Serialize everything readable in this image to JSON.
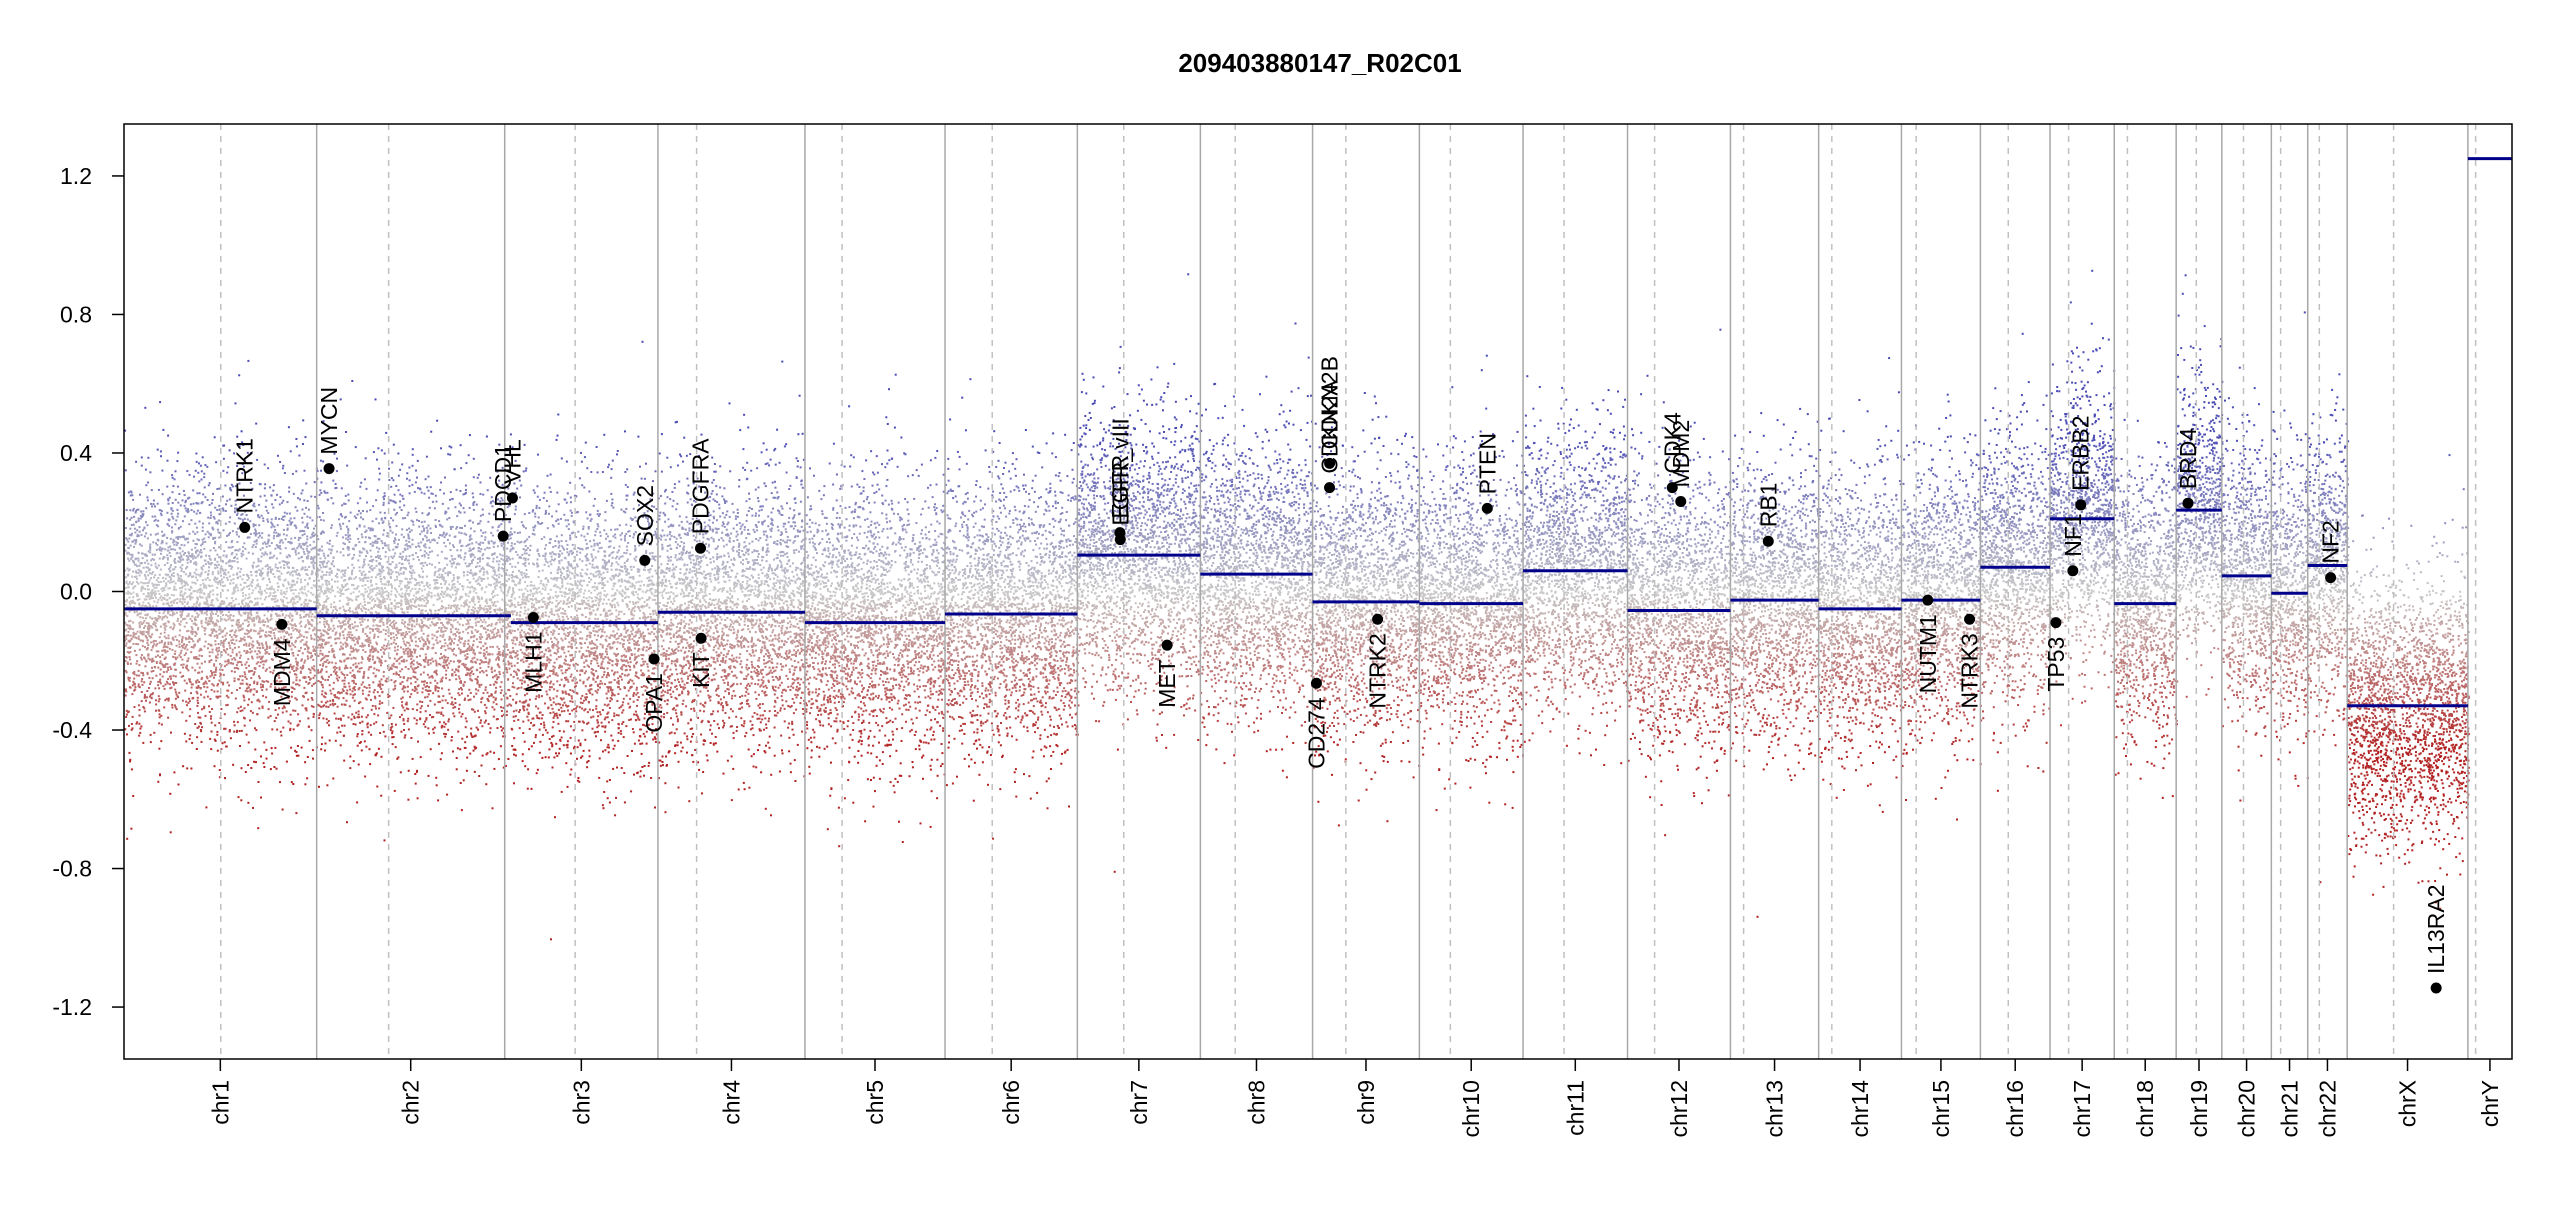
{
  "chart_data": {
    "type": "scatter",
    "title": "209403880147_R02C01",
    "xlabel": "",
    "ylabel": "",
    "ylim": [
      -1.35,
      1.35
    ],
    "y_ticks": [
      -1.2,
      -0.8,
      -0.4,
      0.0,
      0.4,
      0.8,
      1.2
    ],
    "y_tick_labels": [
      "-1.2",
      "-0.8",
      "-0.4",
      "0.0",
      "0.4",
      "0.8",
      "1.2"
    ],
    "grid": false,
    "legend": "none",
    "colors": {
      "gain_points": "#4b4bb5",
      "loss_points": "#b22222",
      "segment_line": "#00008b",
      "chromosome_border": "#a8a8a8",
      "centromere_line": "#c0c0c0",
      "gene_marker": "#000000"
    },
    "chromosomes": [
      {
        "name": "chr1",
        "length": 249,
        "centromere": 125,
        "segments": [
          {
            "start": 0,
            "end": 249,
            "value": -0.05
          }
        ]
      },
      {
        "name": "chr2",
        "length": 243,
        "centromere": 93,
        "segments": [
          {
            "start": 0,
            "end": 243,
            "value": -0.07
          }
        ]
      },
      {
        "name": "chr3",
        "length": 198,
        "centromere": 91,
        "segments": [
          {
            "start": 0,
            "end": 8,
            "value": -0.07
          },
          {
            "start": 8,
            "end": 198,
            "value": -0.09
          }
        ]
      },
      {
        "name": "chr4",
        "length": 190,
        "centromere": 50,
        "segments": [
          {
            "start": 0,
            "end": 190,
            "value": -0.06
          }
        ]
      },
      {
        "name": "chr5",
        "length": 181,
        "centromere": 48,
        "segments": [
          {
            "start": 0,
            "end": 181,
            "value": -0.09
          }
        ]
      },
      {
        "name": "chr6",
        "length": 171,
        "centromere": 61,
        "segments": [
          {
            "start": 0,
            "end": 171,
            "value": -0.065
          }
        ]
      },
      {
        "name": "chr7",
        "length": 159,
        "centromere": 60,
        "segments": [
          {
            "start": 0,
            "end": 159,
            "value": 0.105
          }
        ]
      },
      {
        "name": "chr8",
        "length": 145,
        "centromere": 45,
        "segments": [
          {
            "start": 0,
            "end": 145,
            "value": 0.05
          }
        ]
      },
      {
        "name": "chr9",
        "length": 138,
        "centromere": 43,
        "segments": [
          {
            "start": 0,
            "end": 138,
            "value": -0.03
          }
        ]
      },
      {
        "name": "chr10",
        "length": 134,
        "centromere": 40,
        "segments": [
          {
            "start": 0,
            "end": 134,
            "value": -0.035
          }
        ]
      },
      {
        "name": "chr11",
        "length": 135,
        "centromere": 53,
        "segments": [
          {
            "start": 0,
            "end": 135,
            "value": 0.06
          }
        ]
      },
      {
        "name": "chr12",
        "length": 133,
        "centromere": 35,
        "segments": [
          {
            "start": 0,
            "end": 133,
            "value": -0.055
          }
        ]
      },
      {
        "name": "chr13",
        "length": 114,
        "centromere": 17,
        "segments": [
          {
            "start": 0,
            "end": 114,
            "value": -0.025
          }
        ]
      },
      {
        "name": "chr14",
        "length": 107,
        "centromere": 17,
        "segments": [
          {
            "start": 0,
            "end": 107,
            "value": -0.05
          }
        ]
      },
      {
        "name": "chr15",
        "length": 102,
        "centromere": 19,
        "segments": [
          {
            "start": 0,
            "end": 102,
            "value": -0.025
          }
        ]
      },
      {
        "name": "chr16",
        "length": 90,
        "centromere": 36,
        "segments": [
          {
            "start": 0,
            "end": 90,
            "value": 0.07
          }
        ]
      },
      {
        "name": "chr17",
        "length": 83,
        "centromere": 24,
        "segments": [
          {
            "start": 0,
            "end": 83,
            "value": 0.21
          }
        ]
      },
      {
        "name": "chr18",
        "length": 80,
        "centromere": 17,
        "segments": [
          {
            "start": 0,
            "end": 80,
            "value": -0.035
          }
        ]
      },
      {
        "name": "chr19",
        "length": 59,
        "centromere": 26,
        "segments": [
          {
            "start": 0,
            "end": 59,
            "value": 0.235
          }
        ]
      },
      {
        "name": "chr20",
        "length": 64,
        "centromere": 28,
        "segments": [
          {
            "start": 0,
            "end": 64,
            "value": 0.045
          }
        ]
      },
      {
        "name": "chr21",
        "length": 47,
        "centromere": 12,
        "segments": [
          {
            "start": 0,
            "end": 47,
            "value": -0.005
          }
        ]
      },
      {
        "name": "chr22",
        "length": 51,
        "centromere": 15,
        "segments": [
          {
            "start": 0,
            "end": 51,
            "value": 0.075
          }
        ]
      },
      {
        "name": "chrX",
        "length": 156,
        "centromere": 60,
        "segments": [
          {
            "start": 0,
            "end": 156,
            "value": -0.33
          }
        ]
      },
      {
        "name": "chrY",
        "length": 57,
        "centromere": 10,
        "segments": [
          {
            "start": 0,
            "end": 57,
            "value": 1.25
          }
        ]
      }
    ],
    "genes": [
      {
        "name": "NTRK1",
        "chrom": "chr1",
        "pos": 156,
        "value": 0.185,
        "label_side": "above"
      },
      {
        "name": "MDM4",
        "chrom": "chr1",
        "pos": 204,
        "value": -0.095,
        "label_side": "below"
      },
      {
        "name": "MYCN",
        "chrom": "chr2",
        "pos": 16,
        "value": 0.355,
        "label_side": "above"
      },
      {
        "name": "PDCD1",
        "chrom": "chr2",
        "pos": 241,
        "value": 0.16,
        "label_side": "above"
      },
      {
        "name": "VHL",
        "chrom": "chr3",
        "pos": 10,
        "value": 0.27,
        "label_side": "above"
      },
      {
        "name": "MLH1",
        "chrom": "chr3",
        "pos": 37,
        "value": -0.075,
        "label_side": "below"
      },
      {
        "name": "SOX2",
        "chrom": "chr3",
        "pos": 181,
        "value": 0.09,
        "label_side": "above"
      },
      {
        "name": "OPA1",
        "chrom": "chr3",
        "pos": 193,
        "value": -0.195,
        "label_side": "below"
      },
      {
        "name": "PDGFRA",
        "chrom": "chr4",
        "pos": 55,
        "value": 0.125,
        "label_side": "above"
      },
      {
        "name": "KIT",
        "chrom": "chr4",
        "pos": 55.8,
        "value": -0.135,
        "label_side": "below"
      },
      {
        "name": "EGFR",
        "chrom": "chr7",
        "pos": 55,
        "value": 0.17,
        "label_side": "above"
      },
      {
        "name": "EGFR_vIII",
        "chrom": "chr7",
        "pos": 55.5,
        "value": 0.15,
        "label_side": "above"
      },
      {
        "name": "MET",
        "chrom": "chr7",
        "pos": 116,
        "value": -0.155,
        "label_side": "below"
      },
      {
        "name": "CD274",
        "chrom": "chr9",
        "pos": 5,
        "value": -0.265,
        "label_side": "below"
      },
      {
        "name": "CDKN2A",
        "chrom": "chr9",
        "pos": 21.9,
        "value": 0.3,
        "label_side": "above"
      },
      {
        "name": "CDKN2B",
        "chrom": "chr9",
        "pos": 22,
        "value": 0.37,
        "label_side": "above"
      },
      {
        "name": "NTRK2",
        "chrom": "chr9",
        "pos": 84,
        "value": -0.08,
        "label_side": "below"
      },
      {
        "name": "PTEN",
        "chrom": "chr10",
        "pos": 87.8,
        "value": 0.24,
        "label_side": "above"
      },
      {
        "name": "CDK4",
        "chrom": "chr12",
        "pos": 57.8,
        "value": 0.3,
        "label_side": "above"
      },
      {
        "name": "MDM2",
        "chrom": "chr12",
        "pos": 68.8,
        "value": 0.26,
        "label_side": "above"
      },
      {
        "name": "RB1",
        "chrom": "chr13",
        "pos": 48.9,
        "value": 0.145,
        "label_side": "above"
      },
      {
        "name": "NUTM1",
        "chrom": "chr15",
        "pos": 34,
        "value": -0.025,
        "label_side": "below"
      },
      {
        "name": "NTRK3",
        "chrom": "chr15",
        "pos": 88,
        "value": -0.08,
        "label_side": "below"
      },
      {
        "name": "TP53",
        "chrom": "chr17",
        "pos": 7.6,
        "value": -0.09,
        "label_side": "below"
      },
      {
        "name": "NF1",
        "chrom": "chr17",
        "pos": 29.5,
        "value": 0.06,
        "label_side": "above"
      },
      {
        "name": "ERBB2",
        "chrom": "chr17",
        "pos": 39.7,
        "value": 0.25,
        "label_side": "above"
      },
      {
        "name": "BRD4",
        "chrom": "chr19",
        "pos": 15.3,
        "value": 0.255,
        "label_side": "above"
      },
      {
        "name": "NF2",
        "chrom": "chr22",
        "pos": 29.6,
        "value": 0.04,
        "label_side": "above"
      },
      {
        "name": "IL13RA2",
        "chrom": "chrX",
        "pos": 115,
        "value": -1.145,
        "label_side": "above"
      }
    ]
  }
}
